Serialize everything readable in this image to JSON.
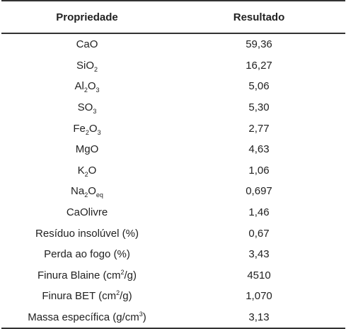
{
  "table": {
    "headers": [
      "Propriedade",
      "Resultado"
    ],
    "rows": [
      {
        "property": "CaO",
        "result": "59,36"
      },
      {
        "property_parts": [
          "Si",
          "O",
          "2"
        ],
        "result": "16,27"
      },
      {
        "property_parts": [
          "Al",
          "2",
          "O",
          "3"
        ],
        "result": "5,06"
      },
      {
        "property_parts": [
          "SO",
          "3"
        ],
        "result": "5,30"
      },
      {
        "property_parts": [
          "Fe",
          "2",
          "O",
          "3"
        ],
        "result": "2,77"
      },
      {
        "property": "MgO",
        "result": "4,63"
      },
      {
        "property_parts": [
          "K",
          "2",
          "O"
        ],
        "result": "1,06"
      },
      {
        "property_parts": [
          "Na",
          "2",
          "O",
          "eq"
        ],
        "result": "0,697"
      },
      {
        "property": "CaOlivre",
        "result": "1,46"
      },
      {
        "property": "Resíduo insolúvel (%)",
        "result": "0,67"
      },
      {
        "property": "Perda ao fogo (%)",
        "result": "3,43"
      },
      {
        "property_parts": [
          "Finura Blaine (cm",
          "2",
          "/g)"
        ],
        "result": "4510"
      },
      {
        "property_parts": [
          "Finura BET (cm",
          "2",
          "/g)"
        ],
        "result": "1,070"
      },
      {
        "property_parts": [
          "Massa específica (g/cm",
          "3",
          ")"
        ],
        "result": "3,13"
      }
    ]
  }
}
